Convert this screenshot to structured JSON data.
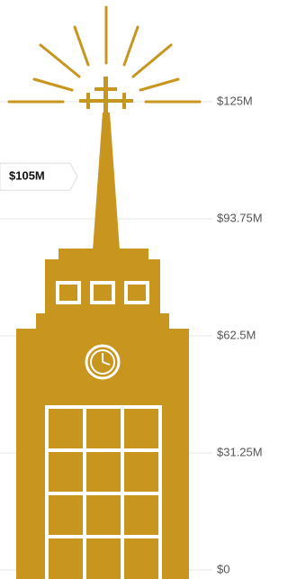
{
  "chart_data": {
    "type": "pictorial",
    "values": [
      105
    ],
    "value_labels": [
      "$105M"
    ],
    "color": "#c8961e",
    "ylim": [
      0,
      125
    ],
    "yticks": [
      {
        "value": 0,
        "label": "$0"
      },
      {
        "value": 31.25,
        "label": "$31.25M"
      },
      {
        "value": 62.5,
        "label": "$62.5M"
      },
      {
        "value": 93.75,
        "label": "$93.75M"
      },
      {
        "value": 125,
        "label": "$125M"
      }
    ],
    "grid": true
  }
}
